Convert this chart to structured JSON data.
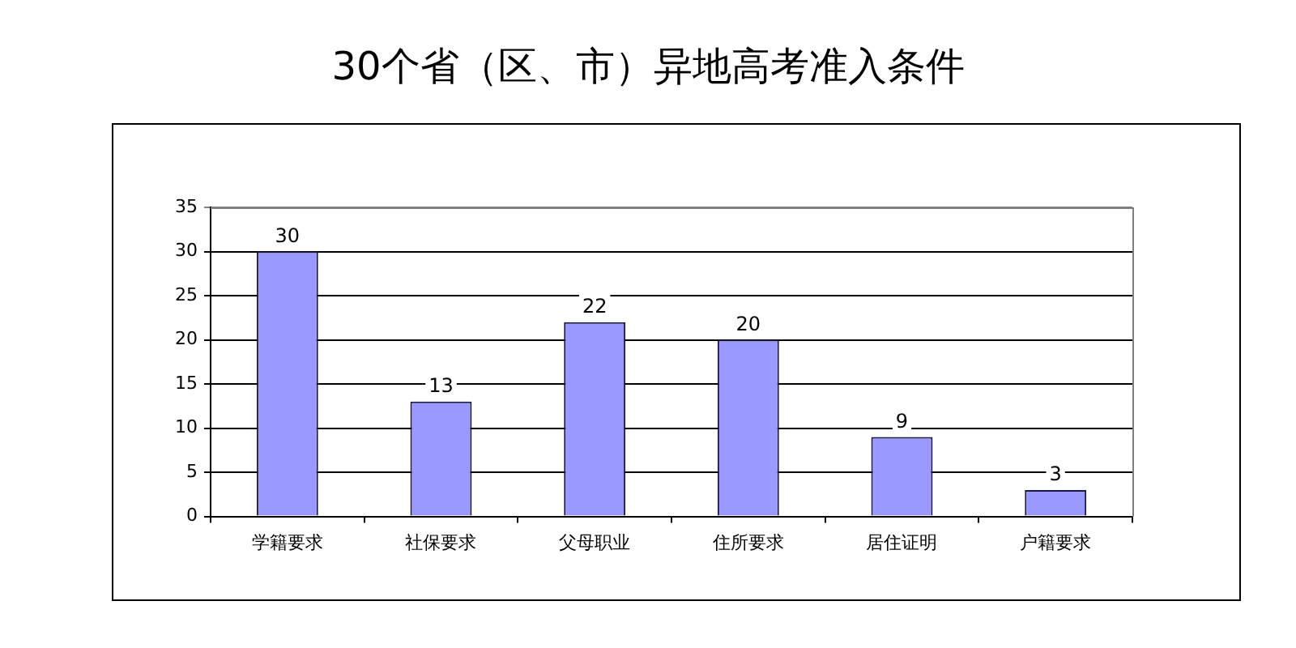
{
  "chart_data": {
    "type": "bar",
    "title": "30个省（区、市）异地高考准入条件",
    "categories": [
      "学籍要求",
      "社保要求",
      "父母职业",
      "住所要求",
      "居住证明",
      "户籍要求"
    ],
    "values": [
      30,
      13,
      22,
      20,
      9,
      3
    ],
    "color": "#9999ff",
    "ylim": [
      0,
      35
    ],
    "yticks": [
      0,
      5,
      10,
      15,
      20,
      25,
      30,
      35
    ],
    "grid": "y",
    "data_labels": true
  }
}
